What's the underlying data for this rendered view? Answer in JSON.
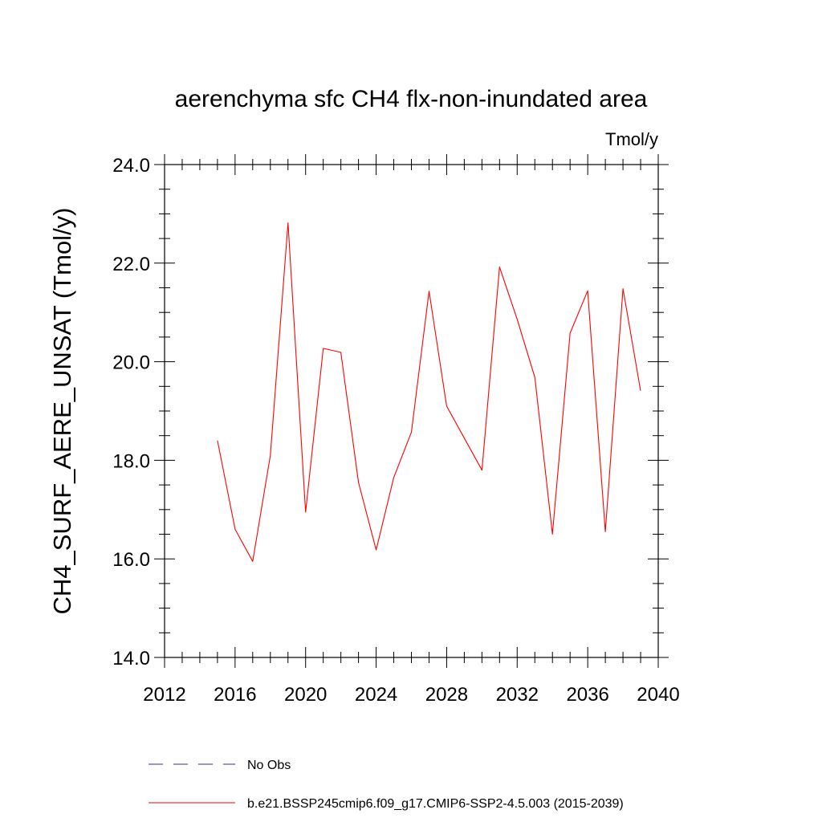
{
  "chart_data": {
    "type": "line",
    "title": "aerenchyma sfc CH4 flx-non-inundated area",
    "units_label": "Tmol/y",
    "ylabel": "CH4_SURF_AERE_UNSAT  (Tmol/y)",
    "xlabel": "",
    "xlim": [
      2012,
      2040
    ],
    "ylim": [
      14.0,
      24.0
    ],
    "x_ticks": [
      2012,
      2016,
      2020,
      2024,
      2028,
      2032,
      2036,
      2040
    ],
    "y_ticks": [
      14.0,
      16.0,
      18.0,
      20.0,
      22.0,
      24.0
    ],
    "y_tick_labels": [
      "14.0",
      "16.0",
      "18.0",
      "20.0",
      "22.0",
      "24.0"
    ],
    "grid": false,
    "legend_position": "bottom",
    "series": [
      {
        "name": "b.e21.BSSP245cmip6.f09_g17.CMIP6-SSP2-4.5.003 (2015-2039)",
        "color": "#ff0000",
        "style": "solid",
        "x": [
          2015,
          2016,
          2017,
          2018,
          2019,
          2020,
          2021,
          2022,
          2023,
          2024,
          2025,
          2026,
          2027,
          2028,
          2029,
          2030,
          2031,
          2032,
          2033,
          2034,
          2035,
          2036,
          2037,
          2038,
          2039
        ],
        "values": [
          18.4,
          16.6,
          15.95,
          18.1,
          22.82,
          16.95,
          20.27,
          20.19,
          17.55,
          16.18,
          17.65,
          18.57,
          21.43,
          19.1,
          18.45,
          17.8,
          21.92,
          20.86,
          19.68,
          16.5,
          20.58,
          21.44,
          16.55,
          21.48,
          19.41
        ]
      },
      {
        "name": "No Obs",
        "color": "#3030a0",
        "style": "dashed",
        "x": [],
        "values": []
      }
    ]
  }
}
